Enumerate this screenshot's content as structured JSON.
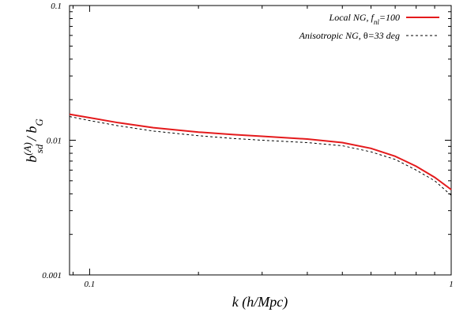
{
  "chart_data": {
    "type": "line",
    "xscale": "log",
    "yscale": "log",
    "xlim": [
      0.088,
      1
    ],
    "ylim": [
      0.001,
      0.1
    ],
    "xticks": [
      {
        "value": 0.1,
        "label": "0.1"
      },
      {
        "value": 1,
        "label": "1"
      }
    ],
    "yticks": [
      {
        "value": 0.001,
        "label": "0.001"
      },
      {
        "value": 0.01,
        "label": "0.01"
      },
      {
        "value": 0.1,
        "label": "0.1"
      }
    ],
    "xlabel": "k (h/Mpc)",
    "ylabel": {
      "base": "b",
      "sup": "(A)",
      "sub": "sd",
      "rest": " / b",
      "sub2": "G"
    },
    "grid": false,
    "legend_position": "top-right",
    "series": [
      {
        "name_parts": [
          [
            "Local NG, f",
            ""
          ],
          [
            "nl",
            "sub"
          ],
          [
            "=100",
            ""
          ]
        ],
        "color": "#e41a1c",
        "style": "solid",
        "x": [
          0.088,
          0.1,
          0.12,
          0.15,
          0.2,
          0.25,
          0.3,
          0.4,
          0.5,
          0.6,
          0.7,
          0.8,
          0.9,
          1.0
        ],
        "y": [
          0.0156,
          0.0147,
          0.0135,
          0.0124,
          0.0115,
          0.011,
          0.0107,
          0.0102,
          0.0096,
          0.0087,
          0.0076,
          0.0064,
          0.0053,
          0.0043
        ]
      },
      {
        "name_parts": [
          [
            "Anisotropic NG, ",
            ""
          ],
          [
            "θ",
            "sym"
          ],
          [
            "=33 deg",
            ""
          ]
        ],
        "color": "#000000",
        "style": "dashed",
        "x": [
          0.088,
          0.1,
          0.12,
          0.15,
          0.2,
          0.25,
          0.3,
          0.4,
          0.5,
          0.6,
          0.7,
          0.8,
          0.9,
          1.0
        ],
        "y": [
          0.015,
          0.014,
          0.0128,
          0.0117,
          0.0108,
          0.0103,
          0.01,
          0.0096,
          0.0091,
          0.0082,
          0.0072,
          0.006,
          0.005,
          0.0039
        ]
      }
    ]
  }
}
